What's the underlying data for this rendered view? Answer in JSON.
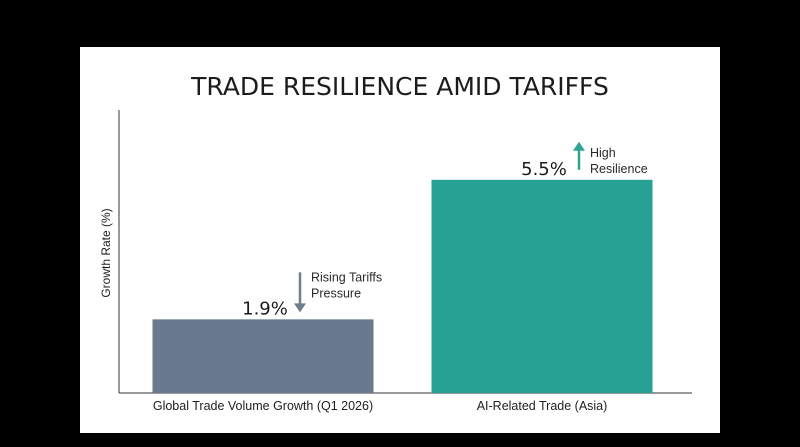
{
  "chart_data": {
    "type": "bar",
    "title": "TRADE RESILIENCE AMID TARIFFS",
    "xlabel": "",
    "ylabel": "Growth Rate (%)",
    "ylim": [
      0,
      7.3
    ],
    "grid": false,
    "categories": [
      "Global Trade Volume Growth (Q1 2026)",
      "AI-Related Trade (Asia)"
    ],
    "values": [
      1.9,
      5.5
    ],
    "value_labels": [
      "1.9%",
      "5.5%"
    ],
    "bar_colors": [
      "#6a7a8e",
      "#26a193"
    ],
    "annotations": [
      {
        "category_index": 0,
        "lines": [
          "Rising Tariffs",
          "Pressure"
        ],
        "arrow": "down",
        "arrow_color": "#6f7d8c",
        "arrow_icon": "arrow-down-icon"
      },
      {
        "category_index": 1,
        "lines": [
          "High",
          "Resilience"
        ],
        "arrow": "up",
        "arrow_color": "#2fa394",
        "arrow_icon": "arrow-up-icon"
      }
    ]
  }
}
